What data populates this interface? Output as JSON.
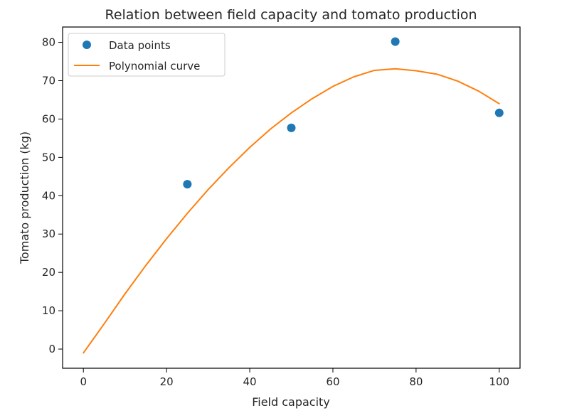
{
  "chart_data": {
    "type": "scatter",
    "title": "Relation between field capacity and tomato production",
    "xlabel": "Field capacity",
    "ylabel": "Tomato production (kg)",
    "xlim": [
      -5,
      105
    ],
    "ylim": [
      -5,
      84
    ],
    "xticks": [
      0,
      20,
      40,
      60,
      80,
      100
    ],
    "yticks": [
      0,
      10,
      20,
      30,
      40,
      50,
      60,
      70,
      80
    ],
    "grid": false,
    "legend_position": "top-left",
    "series": [
      {
        "name": "Data points",
        "kind": "scatter",
        "color": "#1f77b4",
        "x": [
          25,
          50,
          75,
          100
        ],
        "y": [
          43,
          57.7,
          80.2,
          61.6
        ]
      },
      {
        "name": "Polynomial curve",
        "kind": "line",
        "color": "#ff7f0e",
        "x": [
          0,
          5,
          10,
          15,
          20,
          25,
          30,
          35,
          40,
          45,
          50,
          55,
          60,
          65,
          70,
          75,
          80,
          85,
          90,
          95,
          100
        ],
        "y": [
          -1,
          6.6,
          14.4,
          21.8,
          28.8,
          35.4,
          41.6,
          47.3,
          52.6,
          57.4,
          61.6,
          65.3,
          68.5,
          71.0,
          72.7,
          73.1,
          72.6,
          71.7,
          69.9,
          67.3,
          64.0
        ]
      }
    ]
  }
}
